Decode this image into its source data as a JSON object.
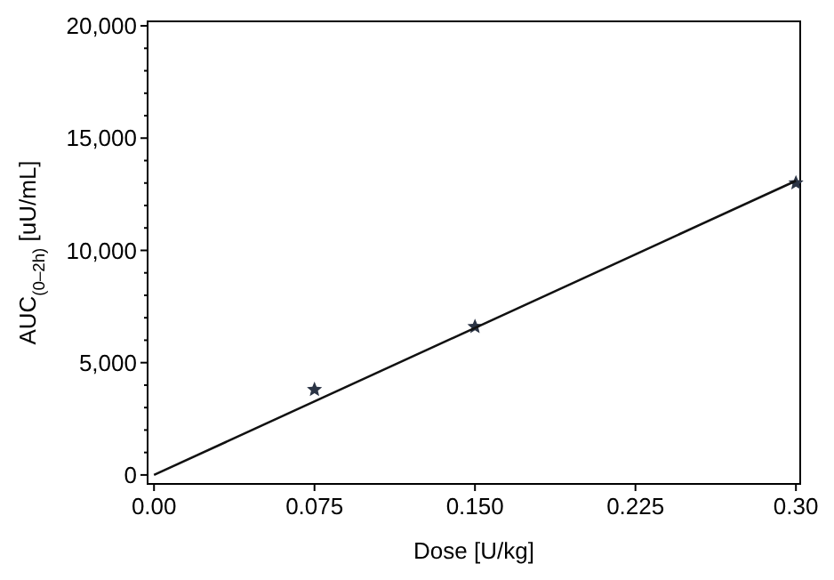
{
  "chart_data": {
    "type": "scatter",
    "xlabel": "Dose [U/kg]",
    "ylabel": "AUC$_{(0–2h)}$ [uU/mL]",
    "xlim": [
      -0.003,
      0.302
    ],
    "ylim": [
      -400,
      20200
    ],
    "xticks": [
      {
        "value": 0,
        "label": "0.00"
      },
      {
        "value": 0.075,
        "label": "0.075"
      },
      {
        "value": 0.15,
        "label": "0.150"
      },
      {
        "value": 0.225,
        "label": "0.225"
      },
      {
        "value": 0.3,
        "label": "0.30"
      }
    ],
    "yticks": [
      {
        "value": 0,
        "label": "0"
      },
      {
        "value": 1000,
        "label": null
      },
      {
        "value": 2000,
        "label": null
      },
      {
        "value": 3000,
        "label": null
      },
      {
        "value": 4000,
        "label": null
      },
      {
        "value": 5000,
        "label": "5,000"
      },
      {
        "value": 6000,
        "label": null
      },
      {
        "value": 7000,
        "label": null
      },
      {
        "value": 8000,
        "label": null
      },
      {
        "value": 9000,
        "label": null
      },
      {
        "value": 10000,
        "label": "10,000"
      },
      {
        "value": 11000,
        "label": null
      },
      {
        "value": 12000,
        "label": null
      },
      {
        "value": 13000,
        "label": null
      },
      {
        "value": 14000,
        "label": null
      },
      {
        "value": 15000,
        "label": "15,000"
      },
      {
        "value": 16000,
        "label": null
      },
      {
        "value": 17000,
        "label": null
      },
      {
        "value": 18000,
        "label": null
      },
      {
        "value": 19000,
        "label": null
      },
      {
        "value": 20000,
        "label": "20,000"
      }
    ],
    "grid": false,
    "series": [
      {
        "marker": "star",
        "color": "#2b3445",
        "x": [
          0.075,
          0.15,
          0.3
        ],
        "values": [
          3800,
          6600,
          13000
        ]
      },
      {
        "type": "line",
        "color": "#111111",
        "x": [
          0,
          0.3
        ],
        "values": [
          0,
          13100
        ]
      }
    ]
  }
}
